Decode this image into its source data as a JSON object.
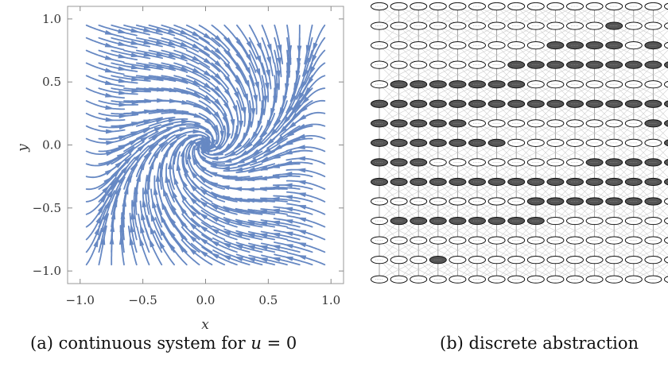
{
  "panel_a": {
    "caption_label": "(a)",
    "caption_text": "continuous system for",
    "caption_var": "u",
    "caption_eq": " = 0",
    "xlabel": "x",
    "ylabel": "y",
    "stream_color": "#6688c3"
  },
  "panel_b": {
    "caption_label": "(b)",
    "caption_text": "discrete abstraction",
    "rows": 15,
    "cols": 16,
    "filled_color": "#555555",
    "empty_color": "#ffffff"
  },
  "chart_data": {
    "type": "streamplot",
    "xlabel": "x",
    "ylabel": "y",
    "xlim": [
      -1.1,
      1.1
    ],
    "ylim": [
      -1.1,
      1.1
    ],
    "xticks": [
      -1.0,
      -0.5,
      0.0,
      0.5,
      1.0
    ],
    "yticks": [
      -1.0,
      -0.5,
      0.0,
      0.5,
      1.0
    ],
    "xtick_labels": [
      "−1.0",
      "−0.5",
      "0.0",
      "0.5",
      "1.0"
    ],
    "ytick_labels": [
      "−1.0",
      "−0.5",
      "0.0",
      "0.5",
      "1.0"
    ],
    "grid": false
  }
}
